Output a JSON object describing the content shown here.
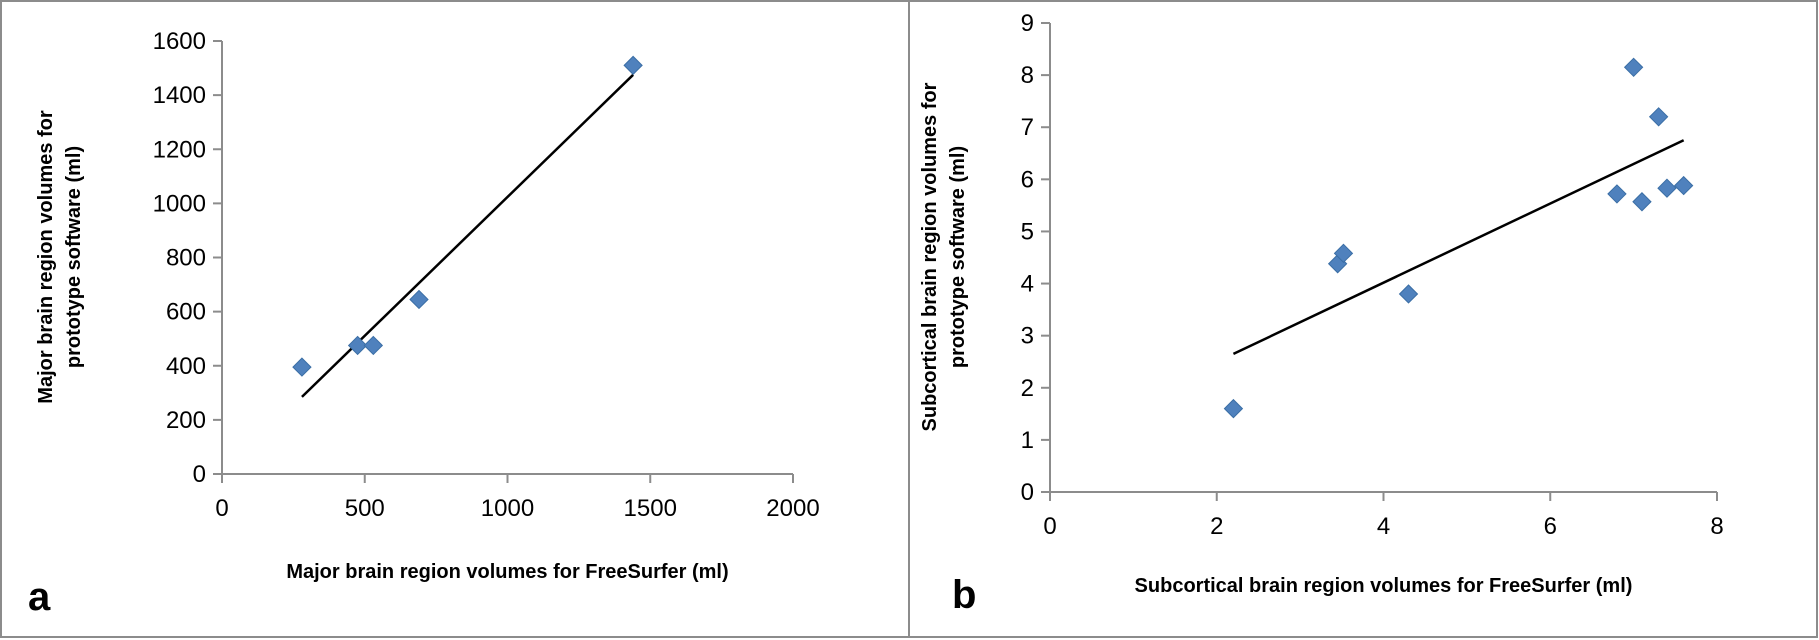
{
  "colors": {
    "marker": "#4f81bd",
    "marker_stroke": "#3a6ea5",
    "axis": "#8c8c8c",
    "trendline": "#000000",
    "panel_border": "#8c8c8c"
  },
  "chart_data": [
    {
      "type": "scatter",
      "panel_letter": "a",
      "title": "",
      "xlabel": "Major brain region volumes for FreeSurfer (ml)",
      "ylabel_lines": [
        "Major brain region volumes for",
        "prototype software (ml)"
      ],
      "xlim": [
        0,
        2000
      ],
      "ylim": [
        0,
        1600
      ],
      "xticks": [
        "0",
        "500",
        "1000",
        "1500",
        "2000"
      ],
      "yticks": [
        "0",
        "200",
        "400",
        "600",
        "800",
        "1000",
        "1200",
        "1400",
        "1600"
      ],
      "points": [
        {
          "x": 280,
          "y": 395
        },
        {
          "x": 475,
          "y": 475
        },
        {
          "x": 530,
          "y": 475
        },
        {
          "x": 690,
          "y": 645
        },
        {
          "x": 1440,
          "y": 1510
        }
      ],
      "trendline": {
        "x": [
          280,
          1440
        ],
        "y": [
          285,
          1475
        ]
      },
      "grid": false,
      "legend": "none"
    },
    {
      "type": "scatter",
      "panel_letter": "b",
      "title": "",
      "xlabel": "Subcortical brain region volumes for FreeSurfer (ml)",
      "ylabel_lines": [
        "Subcortical brain region volumes for",
        "prototype software (ml)"
      ],
      "xlim": [
        0,
        8
      ],
      "ylim": [
        0,
        9
      ],
      "xticks": [
        "0",
        "2",
        "4",
        "6",
        "8"
      ],
      "yticks": [
        "0",
        "1",
        "2",
        "3",
        "4",
        "5",
        "6",
        "7",
        "8",
        "9"
      ],
      "points": [
        {
          "x": 2.2,
          "y": 1.6
        },
        {
          "x": 3.45,
          "y": 4.38
        },
        {
          "x": 3.52,
          "y": 4.58
        },
        {
          "x": 4.3,
          "y": 3.8
        },
        {
          "x": 6.8,
          "y": 5.72
        },
        {
          "x": 7.0,
          "y": 8.15
        },
        {
          "x": 7.1,
          "y": 5.57
        },
        {
          "x": 7.3,
          "y": 7.2
        },
        {
          "x": 7.4,
          "y": 5.83
        },
        {
          "x": 7.6,
          "y": 5.88
        }
      ],
      "trendline": {
        "x": [
          2.2,
          7.6
        ],
        "y": [
          2.65,
          6.75
        ]
      },
      "grid": false,
      "legend": "none"
    }
  ]
}
